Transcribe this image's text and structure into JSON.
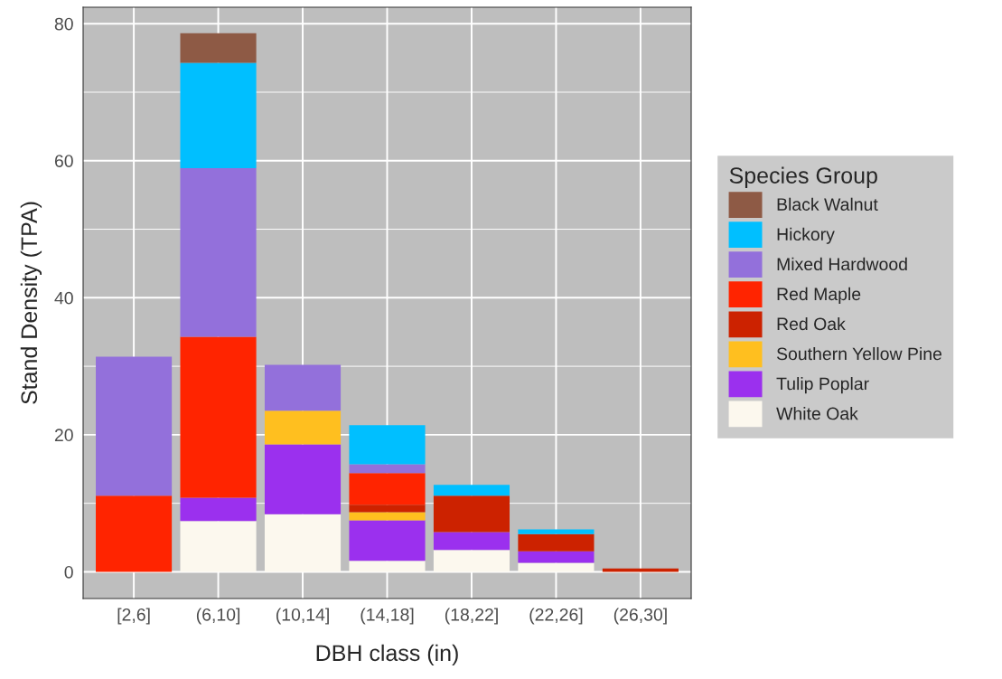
{
  "chart_data": {
    "type": "bar",
    "stacked": true,
    "xlabel": "DBH class (in)",
    "ylabel": "Stand Density (TPA)",
    "legend_title": "Species Group",
    "categories": [
      "[2,6]",
      "(6,10]",
      "(10,14]",
      "(14,18]",
      "(18,22]",
      "(22,26]",
      "(26,30]"
    ],
    "series": [
      {
        "name": "White Oak",
        "color": "#fcf8ee",
        "values": [
          0,
          7.4,
          8.4,
          1.6,
          3.2,
          1.3,
          0
        ]
      },
      {
        "name": "Tulip Poplar",
        "color": "#9b30ee",
        "values": [
          0,
          3.4,
          10.2,
          5.9,
          2.6,
          1.7,
          0
        ]
      },
      {
        "name": "Southern Yellow Pine",
        "color": "#ffbf1f",
        "values": [
          0,
          0,
          4.9,
          1.2,
          0,
          0,
          0
        ]
      },
      {
        "name": "Red Oak",
        "color": "#cc2200",
        "values": [
          0,
          0,
          0,
          1.1,
          5.3,
          2.5,
          0.5
        ]
      },
      {
        "name": "Red Maple",
        "color": "#ff2400",
        "values": [
          11.1,
          23.5,
          0,
          4.6,
          0,
          0,
          0
        ]
      },
      {
        "name": "Mixed Hardwood",
        "color": "#9370db",
        "values": [
          20.3,
          24.6,
          6.7,
          1.3,
          0,
          0,
          0
        ]
      },
      {
        "name": "Hickory",
        "color": "#00bfff",
        "values": [
          0,
          15.4,
          0,
          5.7,
          1.6,
          0.7,
          0
        ]
      },
      {
        "name": "Black Walnut",
        "color": "#8e5a45",
        "values": [
          0,
          4.3,
          0,
          0,
          0,
          0,
          0
        ]
      }
    ],
    "ylim": [
      -3.9,
      82.4
    ],
    "yticks": [
      0,
      20,
      40,
      60,
      80
    ],
    "grid": true,
    "legend": "right"
  }
}
